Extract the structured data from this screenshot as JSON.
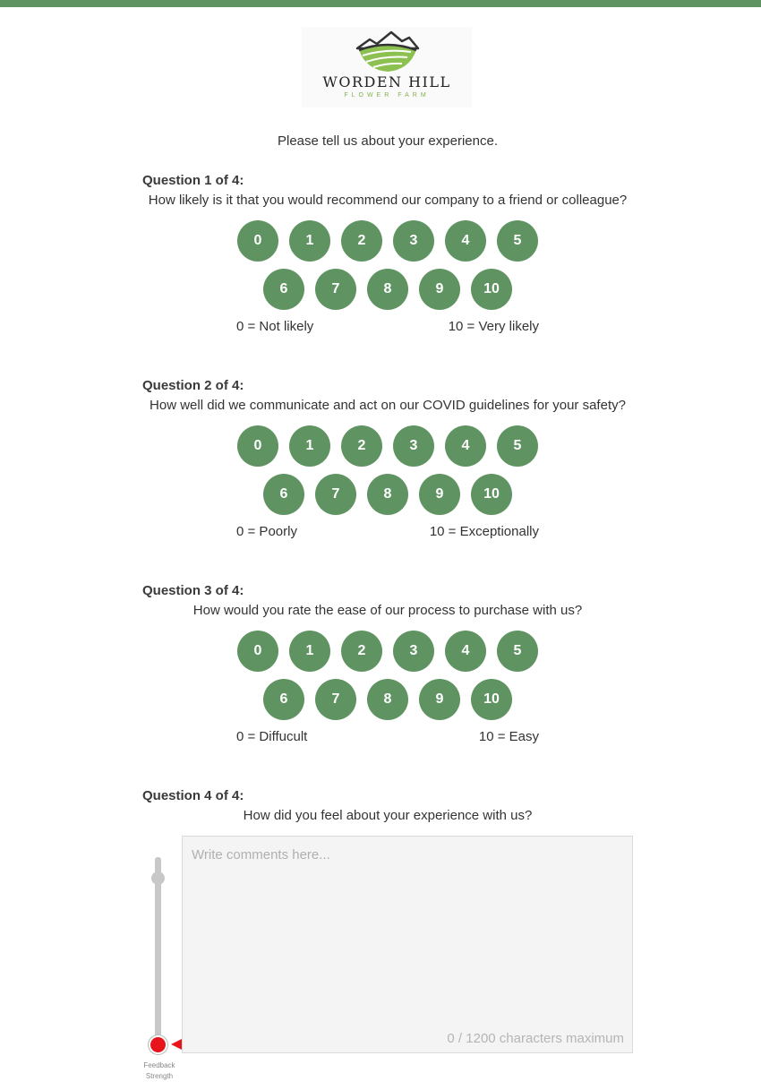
{
  "header": {
    "brand_name": "WORDEN HILL",
    "brand_sub": "FLOWER FARM",
    "accent_color": "#5f9462"
  },
  "intro": "Please tell us about your experience.",
  "questions": [
    {
      "number": "Question 1 of 4:",
      "text": "How likely is it that you would recommend our company to a friend or colleague?",
      "scale_row1": [
        "0",
        "1",
        "2",
        "3",
        "4",
        "5"
      ],
      "scale_row2": [
        "6",
        "7",
        "8",
        "9",
        "10"
      ],
      "low_label": "0 = Not likely",
      "high_label": "10 = Very likely"
    },
    {
      "number": "Question 2 of 4:",
      "text": "How well did we communicate and act on our COVID guidelines for your safety?",
      "scale_row1": [
        "0",
        "1",
        "2",
        "3",
        "4",
        "5"
      ],
      "scale_row2": [
        "6",
        "7",
        "8",
        "9",
        "10"
      ],
      "low_label": "0 = Poorly",
      "high_label": "10 = Exceptionally"
    },
    {
      "number": "Question 3 of 4:",
      "text": "How would you rate the ease of our process to purchase with us?",
      "scale_row1": [
        "0",
        "1",
        "2",
        "3",
        "4",
        "5"
      ],
      "scale_row2": [
        "6",
        "7",
        "8",
        "9",
        "10"
      ],
      "low_label": "0 = Diffucult",
      "high_label": "10 = Easy"
    },
    {
      "number": "Question 4 of 4:",
      "text": "How did you feel about your experience with us?",
      "comment_placeholder": "Write comments here...",
      "comment_value": "",
      "char_counter": "0 / 1200 characters maximum",
      "slider_caption_1": "Feedback",
      "slider_caption_2": "Strength"
    }
  ]
}
